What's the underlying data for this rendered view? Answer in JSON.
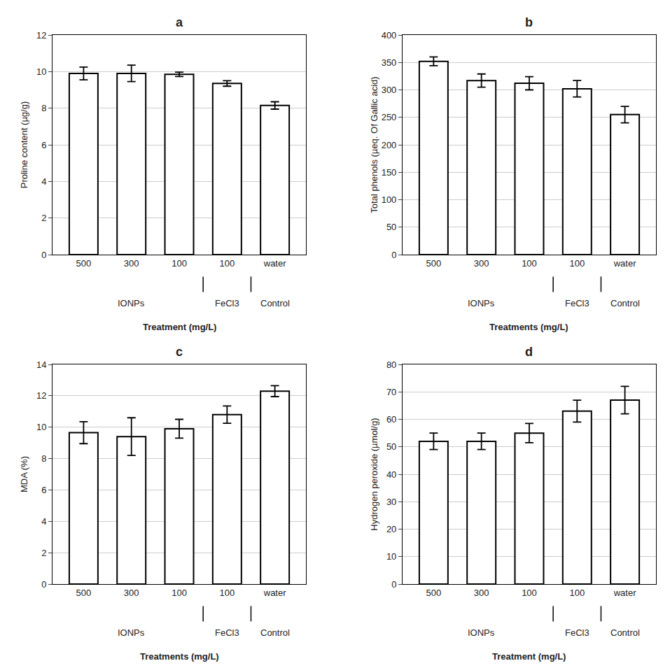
{
  "chart_data": [
    {
      "type": "bar",
      "title": "a",
      "ylabel": "Proline content (µg/g)",
      "xlabel": "Treatment (mg/L)",
      "categories": [
        "500",
        "300",
        "100",
        "100",
        "water"
      ],
      "values": [
        9.9,
        9.9,
        9.85,
        9.35,
        8.15
      ],
      "errors": [
        0.35,
        0.45,
        0.12,
        0.15,
        0.2
      ],
      "ylim": [
        0,
        12
      ],
      "yticks": [
        0,
        2,
        4,
        6,
        8,
        10,
        12
      ],
      "color": "white",
      "grid": true,
      "annotations": [
        {
          "text": "IONPs",
          "x": [
            0,
            2
          ]
        },
        {
          "text": "FeCl3",
          "x": [
            3,
            3
          ]
        },
        {
          "text": "Control",
          "x": [
            4,
            4
          ]
        }
      ]
    },
    {
      "type": "bar",
      "title": "b",
      "ylabel": "Total phenols (µeq. Of Gallic acid)",
      "xlabel": "Treatments (mg/L)",
      "categories": [
        "500",
        "300",
        "100",
        "100",
        "water"
      ],
      "values": [
        352,
        317,
        312,
        302,
        255
      ],
      "errors": [
        8,
        12,
        12,
        15,
        15
      ],
      "ylim": [
        0,
        400
      ],
      "yticks": [
        0,
        50,
        100,
        150,
        200,
        250,
        300,
        350,
        400
      ],
      "color": "white",
      "grid": true,
      "annotations": [
        {
          "text": "IONPs",
          "x": [
            0,
            2
          ]
        },
        {
          "text": "FeCl3",
          "x": [
            3,
            3
          ]
        },
        {
          "text": "Control",
          "x": [
            4,
            4
          ]
        }
      ]
    },
    {
      "type": "bar",
      "title": "c",
      "ylabel": "MDA (%)",
      "xlabel": "Treatments (mg/L)",
      "categories": [
        "500",
        "300",
        "100",
        "100",
        "water"
      ],
      "values": [
        9.65,
        9.4,
        9.9,
        10.8,
        12.3
      ],
      "errors": [
        0.7,
        1.2,
        0.6,
        0.55,
        0.35
      ],
      "ylim": [
        0,
        14
      ],
      "yticks": [
        0,
        2,
        4,
        6,
        8,
        10,
        12,
        14
      ],
      "color": "white",
      "grid": true,
      "annotations": [
        {
          "text": "IONPs",
          "x": [
            0,
            2
          ]
        },
        {
          "text": "FeCl3",
          "x": [
            3,
            3
          ]
        },
        {
          "text": "Control",
          "x": [
            4,
            4
          ]
        }
      ]
    },
    {
      "type": "bar",
      "title": "d",
      "ylabel": "Hydrogen peroxide (µmol/g)",
      "xlabel": "Treatment (mg/L)",
      "categories": [
        "500",
        "300",
        "100",
        "100",
        "water"
      ],
      "values": [
        52,
        52,
        55,
        63,
        67
      ],
      "errors": [
        3,
        3,
        3.5,
        4,
        5
      ],
      "ylim": [
        0,
        80
      ],
      "yticks": [
        0,
        10,
        20,
        30,
        40,
        50,
        60,
        70,
        80
      ],
      "color": "white",
      "grid": true,
      "annotations": [
        {
          "text": "IONPs",
          "x": [
            0,
            2
          ]
        },
        {
          "text": "FeCl3",
          "x": [
            3,
            3
          ]
        },
        {
          "text": "Control",
          "x": [
            4,
            4
          ]
        }
      ]
    }
  ]
}
